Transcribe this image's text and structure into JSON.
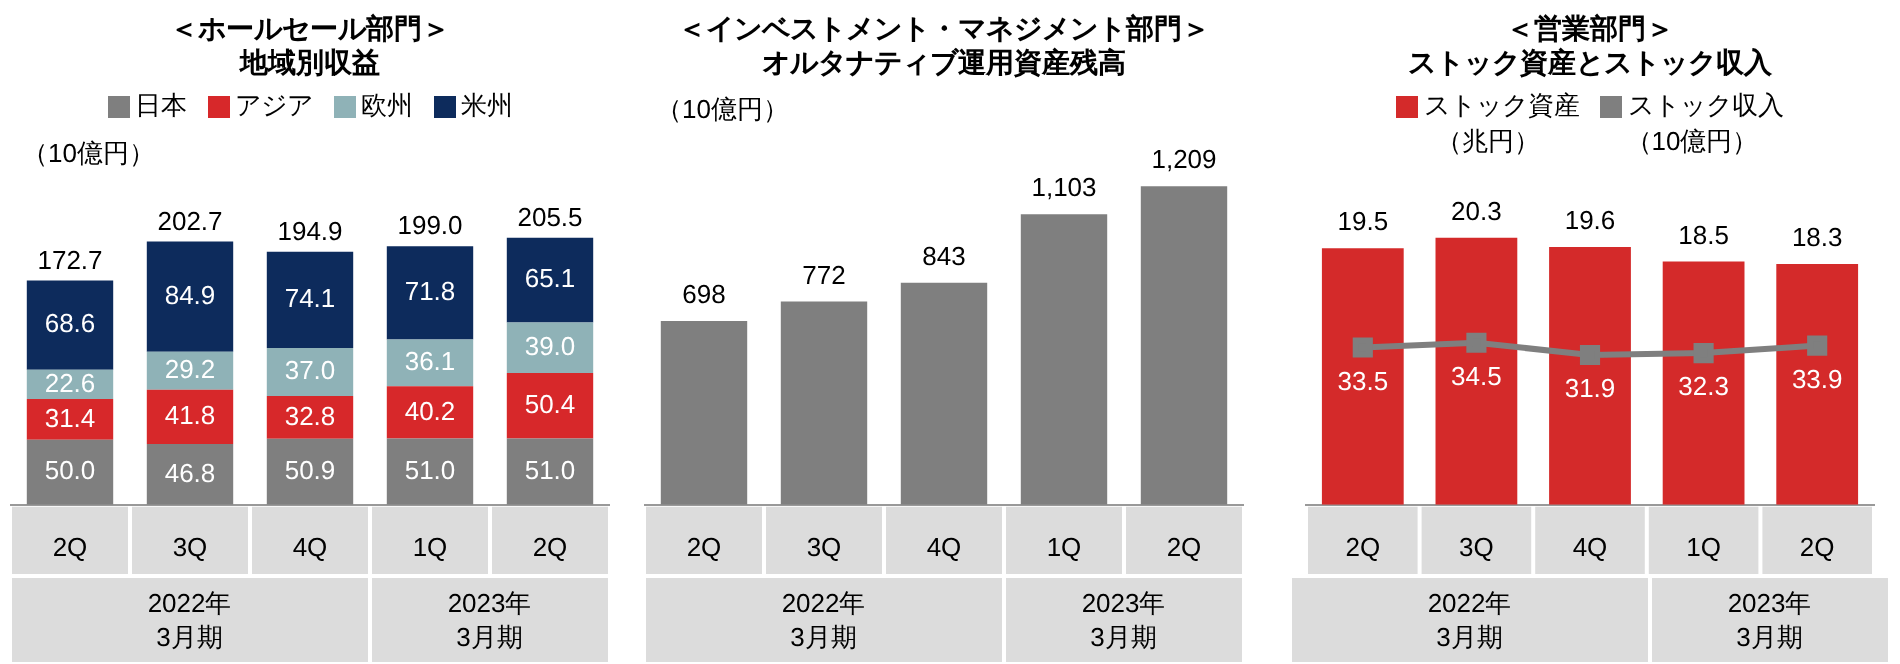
{
  "chart_data": [
    {
      "type": "bar",
      "title": "＜ホールセール部門＞",
      "subtitle": "地域別収益",
      "categories": [
        "2Q",
        "3Q",
        "4Q",
        "1Q",
        "2Q"
      ],
      "stacked": true,
      "legend": "top",
      "series": [
        {
          "name": "日本",
          "color": "#7f7f7f",
          "values": [
            50.0,
            46.8,
            50.9,
            51.0,
            51.0
          ],
          "value_labels": [
            "50.0",
            "46.8",
            "50.9",
            "51.0",
            "51.0"
          ]
        },
        {
          "name": "アジア",
          "color": "#d7282a",
          "values": [
            31.4,
            41.8,
            32.8,
            40.2,
            50.4
          ],
          "value_labels": [
            "31.4",
            "41.8",
            "32.8",
            "40.2",
            "50.4"
          ]
        },
        {
          "name": "欧州",
          "color": "#8fb2b7",
          "values": [
            22.6,
            29.2,
            37.0,
            36.1,
            39.0
          ],
          "value_labels": [
            "22.6",
            "29.2",
            "37.0",
            "36.1",
            "39.0"
          ]
        },
        {
          "name": "米州",
          "color": "#0d2b5c",
          "values": [
            68.6,
            84.9,
            74.1,
            71.8,
            65.1
          ],
          "value_labels": [
            "68.6",
            "84.9",
            "74.1",
            "71.8",
            "65.1"
          ]
        }
      ],
      "totals": [
        "172.7",
        "202.7",
        "194.9",
        "199.0",
        "205.5"
      ],
      "annotations": [
        "（10億円）",
        "2022年\n3月期",
        "2023年\n3月期"
      ]
    },
    {
      "type": "bar",
      "title": "＜インベストメント・マネジメント部門＞",
      "subtitle": "オルタナティブ運用資産残高",
      "categories": [
        "2Q",
        "3Q",
        "4Q",
        "1Q",
        "2Q"
      ],
      "series": [
        {
          "color": "#7f7f7f",
          "values": [
            698,
            772,
            843,
            1103,
            1209
          ],
          "value_labels": [
            "698",
            "772",
            "843",
            "1,103",
            "1,209"
          ]
        }
      ],
      "annotations": [
        "（10億円）",
        "2022年\n3月期",
        "2023年\n3月期"
      ]
    },
    {
      "type": "bar",
      "title": "＜営業部門＞",
      "subtitle": "ストック資産とストック収入",
      "categories": [
        "2Q",
        "3Q",
        "4Q",
        "1Q",
        "2Q"
      ],
      "legend": "top",
      "data_labels": true,
      "marker": "square",
      "series": [
        {
          "name": "ストック資産",
          "color": "#d42a2a",
          "values": [
            19.5,
            20.3,
            19.6,
            18.5,
            18.3
          ]
        },
        {
          "name": "ストック収入",
          "type": "line",
          "axis": "y2",
          "color": "#7f7f7f",
          "values": [
            33.5,
            34.5,
            31.9,
            32.3,
            33.9
          ]
        }
      ],
      "annotations": [
        "（兆円）",
        "（10億円）",
        "2022年\n3月期",
        "2023年\n3月期"
      ]
    }
  ]
}
